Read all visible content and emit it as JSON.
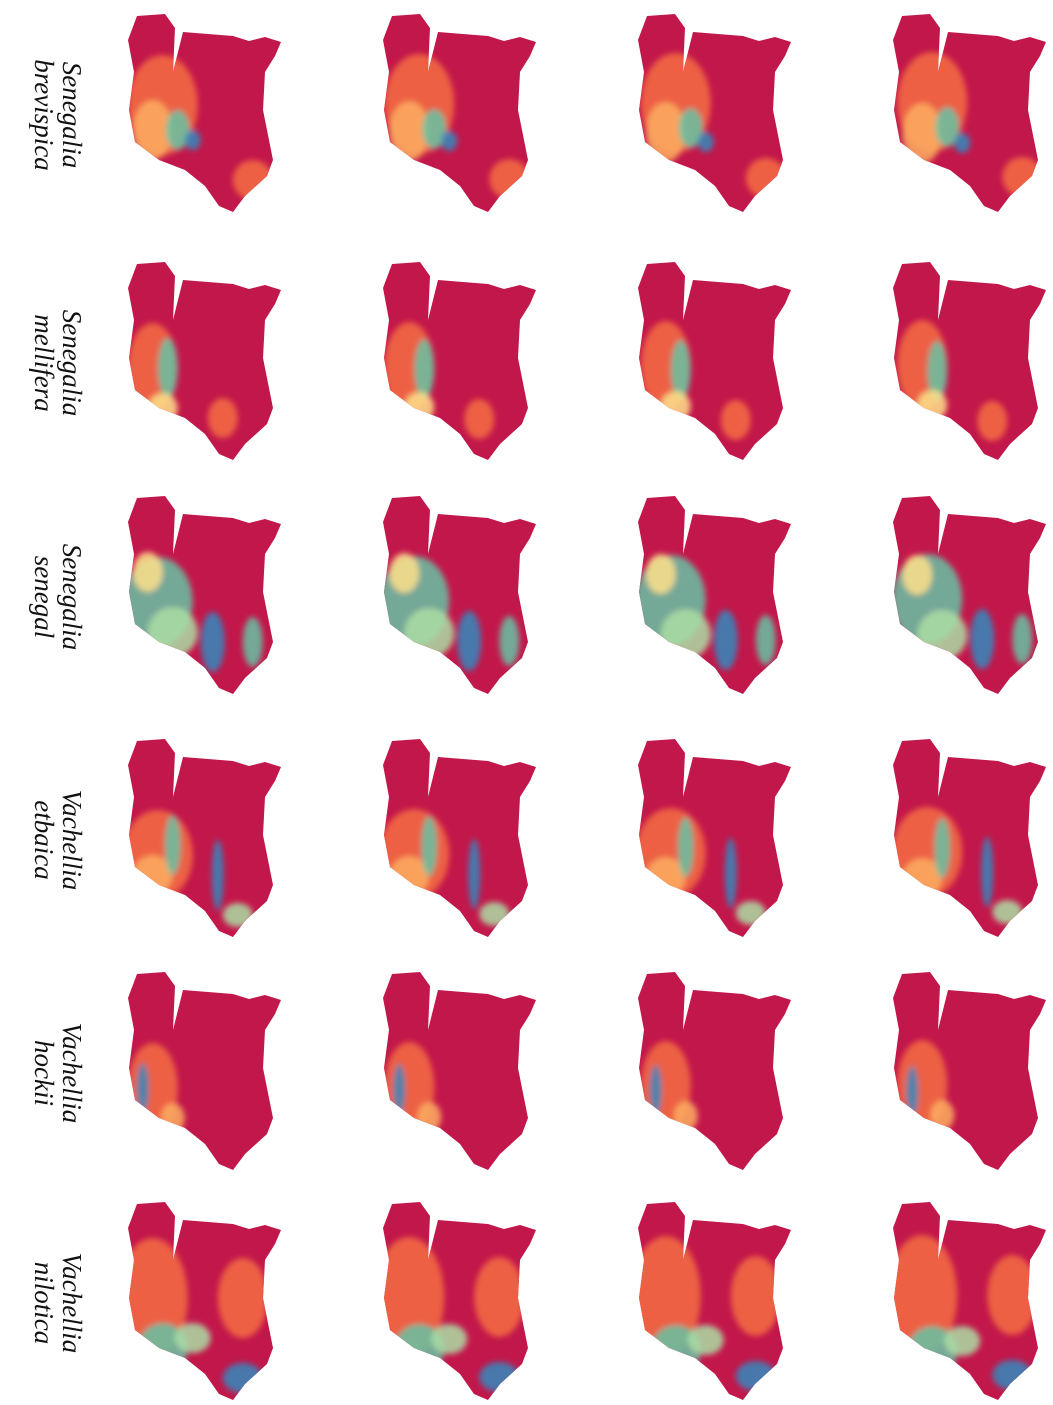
{
  "labels": [
    {
      "genus": "Senegalia",
      "species": "brevispica"
    },
    {
      "genus": "Senegalia",
      "species": "mellifera"
    },
    {
      "genus": "Senegalia",
      "species": "senegal"
    },
    {
      "genus": "Vachellia",
      "species": "etbaica"
    },
    {
      "genus": "Vachellia",
      "species": "hockii"
    },
    {
      "genus": "Vachellia",
      "species": "nilotica"
    }
  ]
}
